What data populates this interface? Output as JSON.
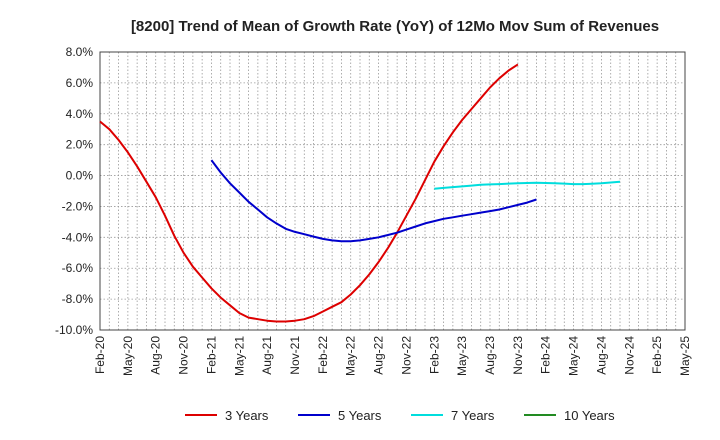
{
  "chart_data": {
    "type": "line",
    "title": "[8200]  Trend of Mean of Growth Rate (YoY) of 12Mo Mov Sum of Revenues",
    "xlabel": "",
    "ylabel": "",
    "ylim": [
      -10,
      8
    ],
    "y_ticks": [
      8,
      6,
      4,
      2,
      0,
      -2,
      -4,
      -6,
      -8,
      -10
    ],
    "y_tick_labels": [
      "8.0%",
      "6.0%",
      "4.0%",
      "2.0%",
      "0.0%",
      "-2.0%",
      "-4.0%",
      "-6.0%",
      "-8.0%",
      "-10.0%"
    ],
    "x_ticks": [
      "Feb-20",
      "May-20",
      "Aug-20",
      "Nov-20",
      "Feb-21",
      "May-21",
      "Aug-21",
      "Nov-21",
      "Feb-22",
      "May-22",
      "Aug-22",
      "Nov-22",
      "Feb-23",
      "May-23",
      "Aug-23",
      "Nov-23",
      "Feb-24",
      "May-24",
      "Aug-24",
      "Nov-24",
      "Feb-25",
      "May-25"
    ],
    "grid": true,
    "legend_position": "bottom",
    "series": [
      {
        "name": "3 Years",
        "color": "#dd0000",
        "points": [
          [
            0,
            3.5
          ],
          [
            1,
            3.0
          ],
          [
            2,
            2.3
          ],
          [
            3,
            1.5
          ],
          [
            4,
            0.6
          ],
          [
            5,
            -0.4
          ],
          [
            6,
            -1.4
          ],
          [
            7,
            -2.6
          ],
          [
            8,
            -3.9
          ],
          [
            9,
            -5.0
          ],
          [
            10,
            -5.9
          ],
          [
            11,
            -6.6
          ],
          [
            12,
            -7.3
          ],
          [
            13,
            -7.9
          ],
          [
            14,
            -8.4
          ],
          [
            15,
            -8.9
          ],
          [
            16,
            -9.2
          ],
          [
            17,
            -9.3
          ],
          [
            18,
            -9.4
          ],
          [
            19,
            -9.45
          ],
          [
            20,
            -9.45
          ],
          [
            21,
            -9.4
          ],
          [
            22,
            -9.3
          ],
          [
            23,
            -9.1
          ],
          [
            24,
            -8.8
          ],
          [
            25,
            -8.5
          ],
          [
            26,
            -8.2
          ],
          [
            27,
            -7.7
          ],
          [
            28,
            -7.1
          ],
          [
            29,
            -6.4
          ],
          [
            30,
            -5.6
          ],
          [
            31,
            -4.7
          ],
          [
            32,
            -3.7
          ],
          [
            33,
            -2.6
          ],
          [
            34,
            -1.5
          ],
          [
            35,
            -0.3
          ],
          [
            36,
            0.9
          ],
          [
            37,
            1.9
          ],
          [
            38,
            2.8
          ],
          [
            39,
            3.6
          ],
          [
            40,
            4.3
          ],
          [
            41,
            5.0
          ],
          [
            42,
            5.7
          ],
          [
            43,
            6.3
          ],
          [
            44,
            6.8
          ],
          [
            45,
            7.2
          ]
        ]
      },
      {
        "name": "5 Years",
        "color": "#0000cc",
        "points": [
          [
            12,
            1.0
          ],
          [
            13,
            0.2
          ],
          [
            14,
            -0.5
          ],
          [
            15,
            -1.1
          ],
          [
            16,
            -1.7
          ],
          [
            17,
            -2.2
          ],
          [
            18,
            -2.7
          ],
          [
            19,
            -3.1
          ],
          [
            20,
            -3.45
          ],
          [
            21,
            -3.65
          ],
          [
            22,
            -3.8
          ],
          [
            23,
            -3.95
          ],
          [
            24,
            -4.1
          ],
          [
            25,
            -4.2
          ],
          [
            26,
            -4.25
          ],
          [
            27,
            -4.25
          ],
          [
            28,
            -4.2
          ],
          [
            29,
            -4.1
          ],
          [
            30,
            -4.0
          ],
          [
            31,
            -3.85
          ],
          [
            32,
            -3.7
          ],
          [
            33,
            -3.5
          ],
          [
            34,
            -3.3
          ],
          [
            35,
            -3.1
          ],
          [
            36,
            -2.95
          ],
          [
            37,
            -2.8
          ],
          [
            38,
            -2.7
          ],
          [
            39,
            -2.6
          ],
          [
            40,
            -2.5
          ],
          [
            41,
            -2.4
          ],
          [
            42,
            -2.3
          ],
          [
            43,
            -2.2
          ],
          [
            44,
            -2.05
          ],
          [
            45,
            -1.9
          ],
          [
            46,
            -1.75
          ],
          [
            47,
            -1.55
          ]
        ]
      },
      {
        "name": "7 Years",
        "color": "#00dddd",
        "points": [
          [
            36,
            -0.85
          ],
          [
            37,
            -0.8
          ],
          [
            38,
            -0.75
          ],
          [
            39,
            -0.7
          ],
          [
            40,
            -0.65
          ],
          [
            41,
            -0.6
          ],
          [
            42,
            -0.57
          ],
          [
            43,
            -0.55
          ],
          [
            44,
            -0.52
          ],
          [
            45,
            -0.5
          ],
          [
            46,
            -0.48
          ],
          [
            47,
            -0.47
          ],
          [
            48,
            -0.48
          ],
          [
            49,
            -0.5
          ],
          [
            50,
            -0.52
          ],
          [
            51,
            -0.55
          ],
          [
            52,
            -0.55
          ],
          [
            53,
            -0.53
          ],
          [
            54,
            -0.5
          ],
          [
            55,
            -0.45
          ],
          [
            56,
            -0.4
          ]
        ]
      },
      {
        "name": "10 Years",
        "color": "#228b22",
        "points": []
      }
    ],
    "legend": [
      "3 Years",
      "5 Years",
      "7 Years",
      "10 Years"
    ]
  }
}
